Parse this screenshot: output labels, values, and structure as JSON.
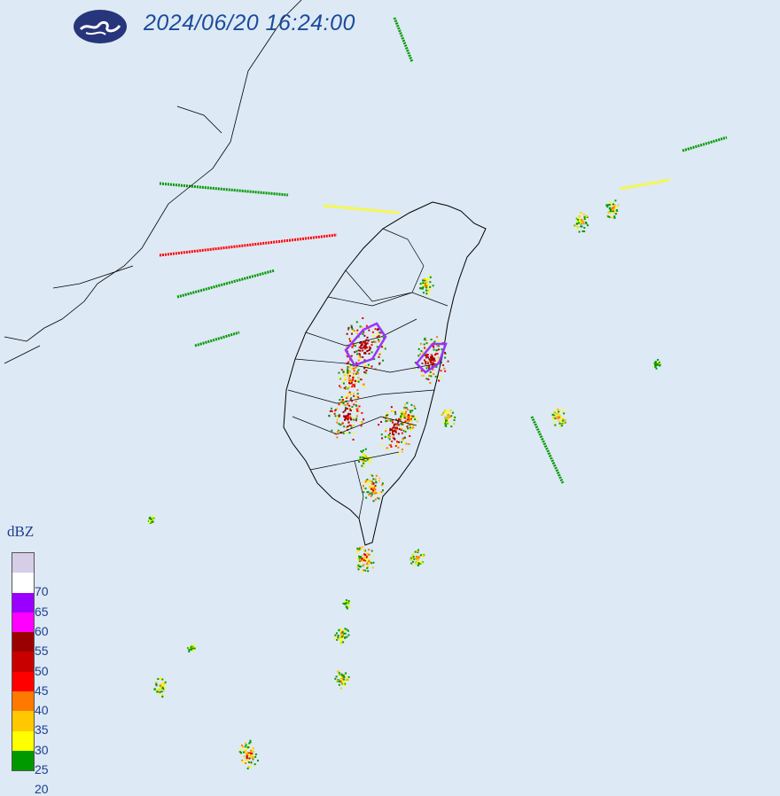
{
  "header": {
    "timestamp": "2024/06/20 16:24:00",
    "logo": "cwa-logo-cloud-emblem"
  },
  "legend": {
    "unit": "dBZ",
    "levels": [
      {
        "label": "",
        "color": "#d6cde6"
      },
      {
        "label": "70",
        "color": "#ffffff"
      },
      {
        "label": "65",
        "color": "#9a00ff"
      },
      {
        "label": "60",
        "color": "#ff00ff"
      },
      {
        "label": "55",
        "color": "#9b0000"
      },
      {
        "label": "50",
        "color": "#c80000"
      },
      {
        "label": "45",
        "color": "#ff0000"
      },
      {
        "label": "40",
        "color": "#ff7800"
      },
      {
        "label": "35",
        "color": "#ffc800"
      },
      {
        "label": "30",
        "color": "#ffff00"
      },
      {
        "label": "25",
        "color": "#009900"
      },
      {
        "label": "20",
        "color": ""
      }
    ]
  },
  "map": {
    "background": "#dde9f4",
    "coastline_color": "#000000",
    "warning_outline_color": "#9933ff"
  }
}
